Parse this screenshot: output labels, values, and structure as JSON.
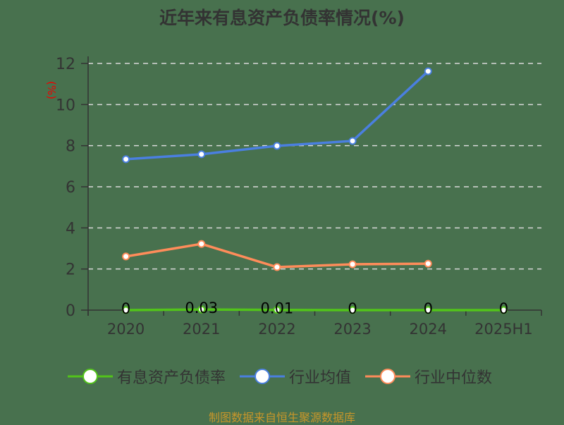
{
  "title": "近年来有息资产负债率情况(%)",
  "y_axis_unit": "(%)",
  "source": "制图数据来自恒生聚源数据库",
  "legend": [
    {
      "label": "有息资产负债率",
      "color": "#52c41a"
    },
    {
      "label": "行业均值",
      "color": "#4a7fe0"
    },
    {
      "label": "行业中位数",
      "color": "#ff8c5a"
    }
  ],
  "chart_data": {
    "type": "line",
    "title": "近年来有息资产负债率情况(%)",
    "xlabel": "",
    "ylabel": "(%)",
    "ylim": [
      0,
      12
    ],
    "yticks": [
      0,
      2,
      4,
      6,
      8,
      10,
      12
    ],
    "grid": true,
    "legend_position": "bottom",
    "categories": [
      "2020",
      "2021",
      "2022",
      "2023",
      "2024",
      "2025H1"
    ],
    "series": [
      {
        "name": "有息资产负债率",
        "color": "#52c41a",
        "values": [
          0,
          0.03,
          0.01,
          0,
          0,
          0
        ],
        "labels": [
          "0",
          "0.03",
          "0.01",
          "0",
          "0",
          "0"
        ]
      },
      {
        "name": "行业均值",
        "color": "#4a7fe0",
        "values": [
          7.34,
          7.58,
          7.99,
          8.23,
          11.62,
          null
        ]
      },
      {
        "name": "行业中位数",
        "color": "#ff8c5a",
        "values": [
          2.61,
          3.22,
          2.09,
          2.23,
          2.26,
          null
        ]
      }
    ]
  }
}
